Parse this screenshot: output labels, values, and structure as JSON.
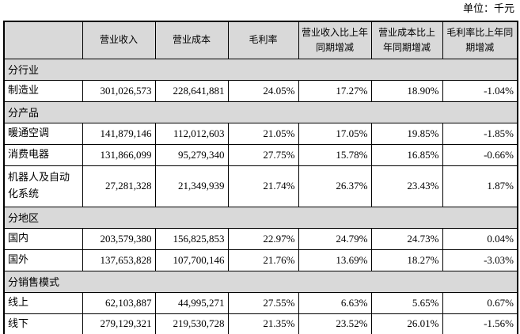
{
  "unit_label": "单位：千元",
  "colors": {
    "header_bg": "#d9d9d9",
    "section_bg": "#d9d9d9",
    "border": "#000000",
    "text": "#000000",
    "page_bg": "#ffffff"
  },
  "table": {
    "columns": [
      "",
      "营业收入",
      "营业成本",
      "毛利率",
      "营业收入比上年同期增减",
      "营业成本比上年同期增减",
      "毛利率比上年同期增减"
    ],
    "sections": [
      {
        "title": "分行业",
        "rows": [
          {
            "label": "制造业",
            "values": [
              "301,026,573",
              "228,641,881",
              "24.05%",
              "17.27%",
              "18.90%",
              "-1.04%"
            ]
          }
        ]
      },
      {
        "title": "分产品",
        "rows": [
          {
            "label": "暖通空调",
            "values": [
              "141,879,146",
              "112,012,603",
              "21.05%",
              "17.05%",
              "19.85%",
              "-1.85%"
            ]
          },
          {
            "label": "消费电器",
            "values": [
              "131,866,099",
              "95,279,340",
              "27.75%",
              "15.78%",
              "16.85%",
              "-0.66%"
            ]
          },
          {
            "label": "机器人及自动化系统",
            "values": [
              "27,281,328",
              "21,349,939",
              "21.74%",
              "26.37%",
              "23.43%",
              "1.87%"
            ]
          }
        ]
      },
      {
        "title": "分地区",
        "rows": [
          {
            "label": "国内",
            "values": [
              "203,579,380",
              "156,825,853",
              "22.97%",
              "24.79%",
              "24.73%",
              "0.04%"
            ]
          },
          {
            "label": "国外",
            "values": [
              "137,653,828",
              "107,700,146",
              "21.76%",
              "13.69%",
              "18.27%",
              "-3.03%"
            ]
          }
        ]
      },
      {
        "title": "分销售模式",
        "rows": [
          {
            "label": "线上",
            "values": [
              "62,103,887",
              "44,995,271",
              "27.55%",
              "6.63%",
              "5.65%",
              "0.67%"
            ]
          },
          {
            "label": "线下",
            "values": [
              "279,129,321",
              "219,530,728",
              "21.35%",
              "23.52%",
              "26.01%",
              "-1.56%"
            ]
          }
        ]
      }
    ]
  }
}
